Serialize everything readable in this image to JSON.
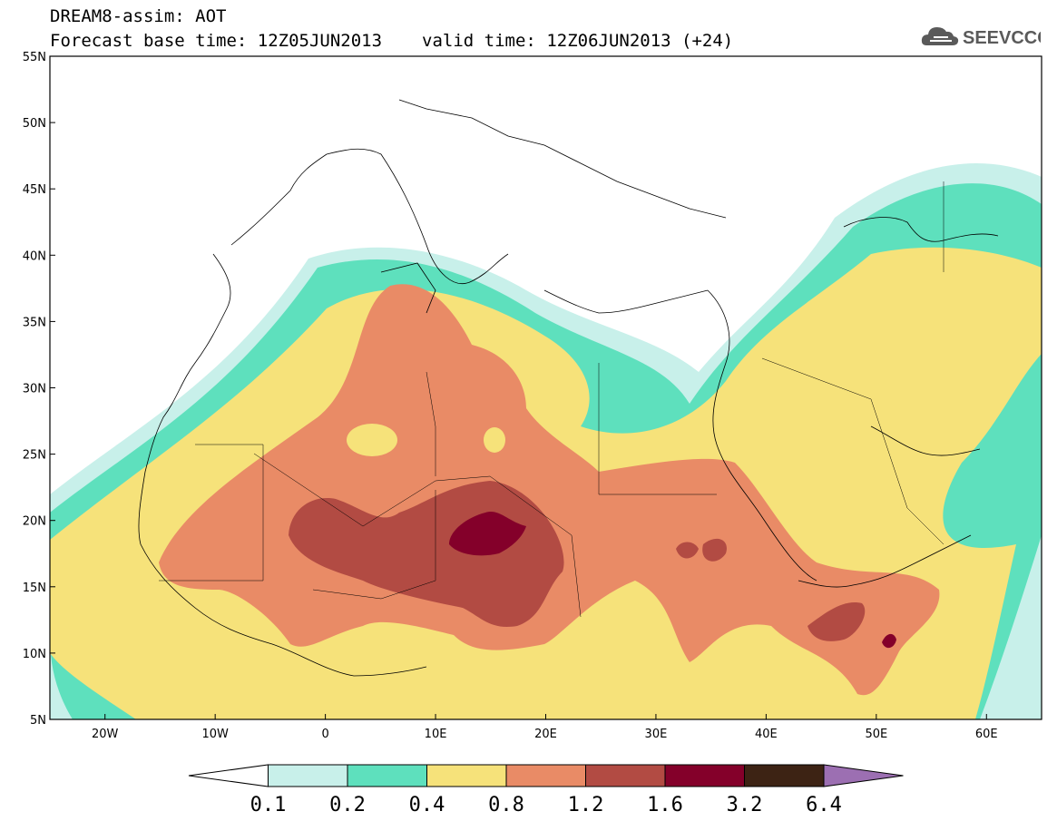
{
  "header": {
    "product": "DREAM8-assim: AOT",
    "base_time": "Forecast base time: 12Z05JUN2013",
    "valid_time": "valid time: 12Z06JUN2013 (+24)"
  },
  "logo": {
    "text": "SEEVCCC",
    "icon": "cloud-icon"
  },
  "map": {
    "lon_range": [
      -25,
      65
    ],
    "lat_range": [
      5,
      55
    ],
    "lat_labels": [
      "5N",
      "10N",
      "15N",
      "20N",
      "25N",
      "30N",
      "35N",
      "40N",
      "45N",
      "50N",
      "55N"
    ],
    "lon_labels": [
      "20W",
      "10W",
      "0",
      "10E",
      "20E",
      "30E",
      "40E",
      "50E",
      "60E"
    ],
    "background": "#ffffff",
    "ocean_outline_color": "#000000"
  },
  "colorbar": {
    "labels": [
      "0.1",
      "0.2",
      "0.4",
      "0.8",
      "1.2",
      "1.6",
      "3.2",
      "6.4"
    ],
    "colors": [
      "#ffffff",
      "#c8f0ea",
      "#5ee0bd",
      "#f6e27a",
      "#e98b66",
      "#b24b43",
      "#84002a",
      "#3d2314",
      "#9c6fb2"
    ]
  }
}
